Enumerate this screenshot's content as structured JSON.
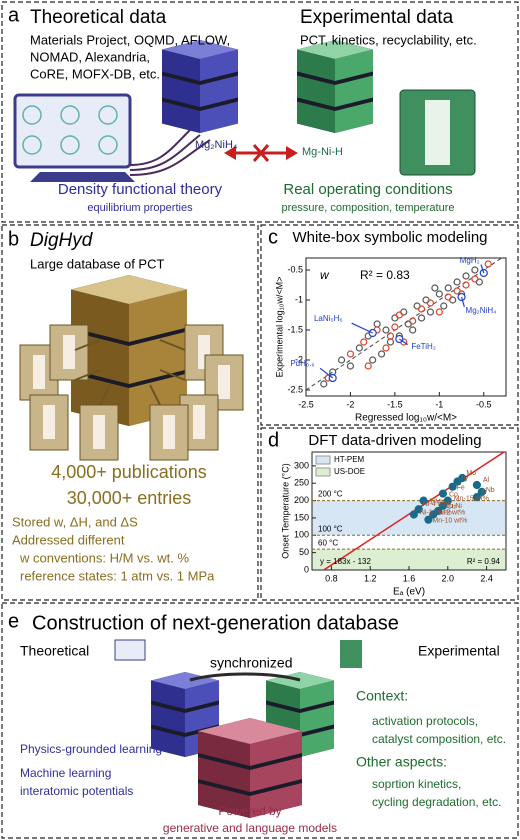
{
  "panels": {
    "a": {
      "label": "a",
      "theory_title": "Theoretical data",
      "theory_sources": [
        "Materials Project, OQMD, AFLOW,",
        "NOMAD, Alexandria,",
        "CoRE, MOFX-DB, etc."
      ],
      "experiment_title": "Experimental data",
      "experiment_sources": "PCT, kinetics, recyclability, etc.",
      "theory_formula": "Mg₂NiH₄",
      "experiment_formula": "Mg-Ni-H",
      "theory_caption": "Density functional theory",
      "theory_subcaption": "equilibrium properties",
      "experiment_caption": "Real operating conditions",
      "experiment_subcaption": "pressure, composition, temperature"
    },
    "b": {
      "label": "b",
      "title": "DigHyd",
      "subtitle": "Large database of PCT",
      "stats": [
        "4,000+ publications",
        "30,000+ entries"
      ],
      "notes": [
        "Stored w, ΔH, and ΔS",
        "Addressed different",
        "w conventions: H/M vs. wt. %",
        "reference states: 1 atm vs. 1 MPa"
      ]
    },
    "c": {
      "label": "c"
    },
    "d": {
      "label": "d"
    },
    "e": {
      "label": "e",
      "title": "Construction of next-generation database",
      "theory_label": "Theoretical",
      "sync_label": "synchronized",
      "experiment_label": "Experimental",
      "context_title": "Context:",
      "context_items": [
        "activation protocols,",
        "catalyst composition, etc."
      ],
      "other_title": "Other aspects:",
      "other_items": [
        "soprtion kinetics,",
        "cycling degradation, etc."
      ],
      "theory_items": [
        "Physics-grounded learning",
        "Machine learning",
        "interatomic potentials"
      ],
      "powered": [
        "Powered by",
        "generative and language models"
      ]
    }
  },
  "chart_data": [
    {
      "type": "scatter",
      "title": "White-box symbolic modeling",
      "xlabel": "Regressed log₁₀w/<M>",
      "ylabel": "Experimental log₁₀w/<M>",
      "annotations": [
        "w",
        "R² = 0.83"
      ],
      "xlim": [
        -2.5,
        -0.25
      ],
      "ylim": [
        -2.6,
        -0.3
      ],
      "xticks": [
        -2.5,
        -2,
        -1.5,
        -1,
        -0.5
      ],
      "yticks": [
        -2.5,
        -2,
        -1.5,
        -1,
        -0.5
      ],
      "diagonal": true,
      "series": [
        {
          "color": "#555555",
          "x": [
            -2.3,
            -2.1,
            -2.0,
            -1.9,
            -1.8,
            -1.75,
            -1.6,
            -1.55,
            -1.5,
            -1.45,
            -1.4,
            -1.35,
            -1.3,
            -1.25,
            -1.2,
            -1.15,
            -1.1,
            -1.0,
            -0.95,
            -0.9,
            -0.85,
            -0.8,
            -0.7,
            -0.6,
            -0.55,
            -1.65,
            -1.7,
            -2.2,
            -1.05,
            -0.75
          ],
          "values": [
            -2.4,
            -2.0,
            -2.1,
            -1.8,
            -1.6,
            -2.0,
            -1.5,
            -1.7,
            -1.3,
            -1.6,
            -1.2,
            -1.4,
            -1.5,
            -1.1,
            -1.3,
            -1.0,
            -1.2,
            -0.9,
            -1.1,
            -0.8,
            -1.0,
            -0.7,
            -0.6,
            -0.5,
            -0.7,
            -1.9,
            -1.4,
            -2.2,
            -0.8,
            -0.9
          ]
        },
        {
          "color": "#d9412b",
          "x": [
            -2.25,
            -2.0,
            -1.85,
            -1.8,
            -1.7,
            -1.6,
            -1.5,
            -1.45,
            -1.4,
            -1.3,
            -1.2,
            -1.1,
            -1.0,
            -0.9,
            -0.8,
            -0.7,
            -0.6,
            -0.5,
            -0.45,
            -1.55
          ],
          "values": [
            -2.3,
            -1.9,
            -1.7,
            -2.1,
            -1.5,
            -1.8,
            -1.45,
            -1.25,
            -1.7,
            -1.35,
            -1.15,
            -1.05,
            -1.2,
            -0.95,
            -0.85,
            -0.75,
            -0.65,
            -0.55,
            -0.4,
            -1.6
          ]
        },
        {
          "color": "#1f3fd0",
          "labels": [
            "MgH₂",
            "Mg₂NiH₄",
            "FeTiH₂",
            "LaNi₅H₆",
            "PdH₀.₆"
          ],
          "x": [
            -0.5,
            -0.75,
            -1.45,
            -1.75,
            -2.2
          ],
          "values": [
            -0.55,
            -0.95,
            -1.65,
            -1.55,
            -2.3
          ]
        }
      ]
    },
    {
      "type": "scatter",
      "title": "DFT data-driven modeling",
      "xlabel": "Eₐ (eV)",
      "ylabel": "Onset Temperature (°C)",
      "xlim": [
        0.6,
        2.6
      ],
      "ylim": [
        0,
        340
      ],
      "xticks": [
        0.8,
        1.2,
        1.6,
        {
          "value": 2,
          "label": "2.0"
        },
        2.4
      ],
      "yticks": [
        0,
        50,
        100,
        150,
        200,
        250,
        300
      ],
      "legend": "top-left",
      "bands": [
        {
          "name": "HT-PEM",
          "color": "#d6e6f5",
          "range": [
            100,
            200
          ]
        },
        {
          "name": "US-DOE",
          "color": "#dcefd2",
          "range": [
            0,
            60
          ]
        }
      ],
      "reference_lines": [
        {
          "value": 200,
          "label": "200 °C"
        },
        {
          "value": 100,
          "label": "100 °C"
        },
        {
          "value": 60,
          "label": "60 °C"
        }
      ],
      "fit": {
        "slope": 183,
        "intercept": -132,
        "color": "#e02020",
        "label": "y = 183x - 132",
        "r2_label": "R² = 0.94"
      },
      "series": [
        {
          "color": "#1a6b8a",
          "labels": [
            "Mo",
            "V",
            "Fe",
            "Al",
            "Nb",
            "Co",
            "Ti",
            "Mn-15 wt%",
            "Cu",
            "Cu-Ni",
            "Ni-2 wt%",
            "TiMn",
            "Ni-4 wt%",
            "Ni-10 wt%",
            "Mn-10 wt%"
          ],
          "x": [
            2.15,
            2.1,
            2.05,
            2.3,
            2.35,
            1.95,
            2.3,
            2.0,
            1.95,
            1.9,
            1.85,
            1.75,
            1.7,
            1.65,
            1.8
          ],
          "values": [
            265,
            255,
            240,
            245,
            225,
            220,
            210,
            200,
            185,
            170,
            160,
            200,
            175,
            160,
            145
          ]
        }
      ]
    }
  ]
}
